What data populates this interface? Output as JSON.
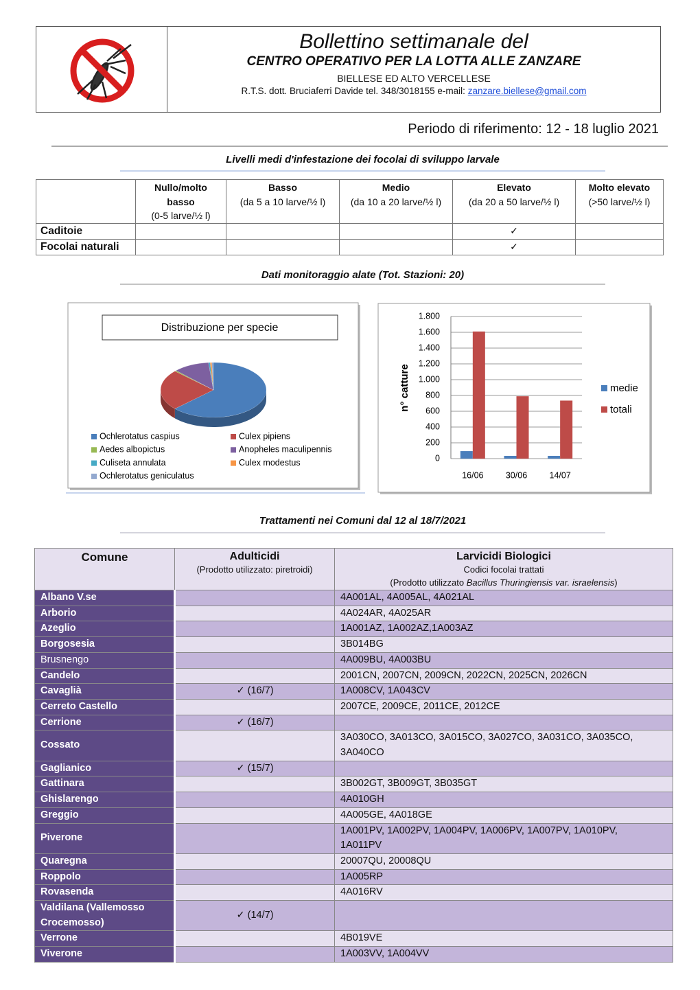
{
  "header": {
    "title": "Bollettino settimanale del",
    "subtitle": "CENTRO OPERATIVO PER LA LOTTA ALLE ZANZARE",
    "region": "BIELLESE ED ALTO VERCELLESE",
    "contact": "R.T.S. dott. Bruciaferri Davide tel. 348/3018155 e-mail:",
    "email": "zanzare.biellese@gmail.com"
  },
  "period": "Periodo di riferimento: 12 - 18 luglio 2021",
  "larval": {
    "title": "Livelli medi d'infestazione dei focolai di sviluppo larvale",
    "columns": [
      {
        "name": "Nullo/molto basso",
        "detail": "(0-5 larve/½ l)"
      },
      {
        "name": "Basso",
        "detail": "(da 5 a 10 larve/½ l)"
      },
      {
        "name": "Medio",
        "detail": "(da 10 a 20 larve/½ l)"
      },
      {
        "name": "Elevato",
        "detail": "(da 20 a 50 larve/½ l)"
      },
      {
        "name": "Molto elevato",
        "detail": "(>50 larve/½ l)"
      }
    ],
    "rows": [
      {
        "label": "Caditoie",
        "cells": [
          null,
          null,
          null,
          "✓",
          null
        ]
      },
      {
        "label": "Focolai naturali",
        "cells": [
          null,
          null,
          null,
          "✓",
          null
        ]
      }
    ]
  },
  "monitoring": {
    "title": "Dati  monitoraggio alate (Tot. Stazioni: 20)"
  },
  "chart_data": [
    {
      "type": "pie",
      "title": "Distribuzione per specie",
      "categories": [
        "Ochlerotatus caspius",
        "Culex pipiens",
        "Aedes albopictus",
        "Anopheles maculipennis",
        "Culiseta annulata",
        "Culex modestus",
        "Ochlerotatus geniculatus"
      ],
      "values": [
        63,
        24,
        0.5,
        11,
        0.5,
        0.5,
        0.5
      ],
      "colors": [
        "#4a7ebb",
        "#be4b48",
        "#98b954",
        "#7d60a0",
        "#46aac5",
        "#f79646",
        "#93a9cf"
      ]
    },
    {
      "type": "bar",
      "ylabel": "n° catture",
      "categories": [
        "16/06",
        "30/06",
        "14/07"
      ],
      "series": [
        {
          "name": "medie",
          "color": "#4a7ebb",
          "values": [
            95,
            35,
            35
          ]
        },
        {
          "name": "totali",
          "color": "#be4b48",
          "values": [
            1610,
            790,
            735
          ]
        }
      ],
      "ylim": [
        0,
        1800
      ],
      "yticks": [
        0,
        200,
        400,
        600,
        800,
        {
          "value": 1000,
          "label": "1.000"
        },
        {
          "value": 1200,
          "label": "1.200"
        },
        {
          "value": 1400,
          "label": "1.400"
        },
        {
          "value": 1600,
          "label": "1.600"
        },
        {
          "value": 1800,
          "label": "1.800"
        }
      ],
      "grid": true,
      "legend": "right"
    }
  ],
  "treatments": {
    "title": "Trattamenti nei Comuni dal 12 al 18/7/2021",
    "headers": {
      "comune": "Comune",
      "adulticidi": "Adulticidi",
      "adulticidi_note": "(Prodotto utilizzato: piretroidi)",
      "larvicidi": "Larvicidi Biologici",
      "larvicidi_sub": "Codici focolai trattati",
      "larvicidi_note": [
        "(Prodotto utilizzato ",
        "Bacillus Thuringiensis var. israelensis",
        ")"
      ]
    },
    "rows": [
      {
        "comune": "Albano V.se",
        "adulticidi": null,
        "larvicidi": "4A001AL, 4A005AL, 4A021AL"
      },
      {
        "comune": "Arborio",
        "adulticidi": null,
        "larvicidi": "4A024AR, 4A025AR"
      },
      {
        "comune": "Azeglio",
        "adulticidi": null,
        "larvicidi": "1A001AZ, 1A002AZ,1A003AZ"
      },
      {
        "comune": "Borgosesia",
        "adulticidi": null,
        "larvicidi": "3B014BG"
      },
      {
        "comune": "Brusnengo",
        "adulticidi": null,
        "larvicidi": "4A009BU, 4A003BU"
      },
      {
        "comune": "Candelo",
        "adulticidi": null,
        "larvicidi": "2001CN, 2007CN, 2009CN, 2022CN, 2025CN, 2026CN"
      },
      {
        "comune": "Cavaglià",
        "adulticidi": "✓ (16/7)",
        "larvicidi": "1A008CV, 1A043CV"
      },
      {
        "comune": "Cerreto Castello",
        "adulticidi": null,
        "larvicidi": "2007CE, 2009CE, 2011CE, 2012CE"
      },
      {
        "comune": "Cerrione",
        "adulticidi": "✓ (16/7)",
        "larvicidi": null
      },
      {
        "comune": "Cossato",
        "adulticidi": null,
        "larvicidi": "3A030CO, 3A013CO, 3A015CO, 3A027CO, 3A031CO, 3A035CO, 3A040CO"
      },
      {
        "comune": "Gaglianico",
        "adulticidi": "✓ (15/7)",
        "larvicidi": null
      },
      {
        "comune": "Gattinara",
        "adulticidi": null,
        "larvicidi": "3B002GT, 3B009GT, 3B035GT"
      },
      {
        "comune": "Ghislarengo",
        "adulticidi": null,
        "larvicidi": "4A010GH"
      },
      {
        "comune": "Greggio",
        "adulticidi": null,
        "larvicidi": "4A005GE, 4A018GE"
      },
      {
        "comune": "Piverone",
        "adulticidi": null,
        "larvicidi": "1A001PV, 1A002PV, 1A004PV, 1A006PV, 1A007PV, 1A010PV, 1A011PV"
      },
      {
        "comune": "Quaregna",
        "adulticidi": null,
        "larvicidi": "20007QU, 20008QU"
      },
      {
        "comune": "Roppolo",
        "adulticidi": null,
        "larvicidi": "1A005RP"
      },
      {
        "comune": "Rovasenda",
        "adulticidi": null,
        "larvicidi": "4A016RV"
      },
      {
        "comune": "Valdilana (Vallemosso Crocemosso)",
        "adulticidi": "✓ (14/7)",
        "larvicidi": null
      },
      {
        "comune": "Verrone",
        "adulticidi": null,
        "larvicidi": "4B019VE"
      },
      {
        "comune": "Viverone",
        "adulticidi": null,
        "larvicidi": "1A003VV, 1A004VV"
      }
    ]
  }
}
